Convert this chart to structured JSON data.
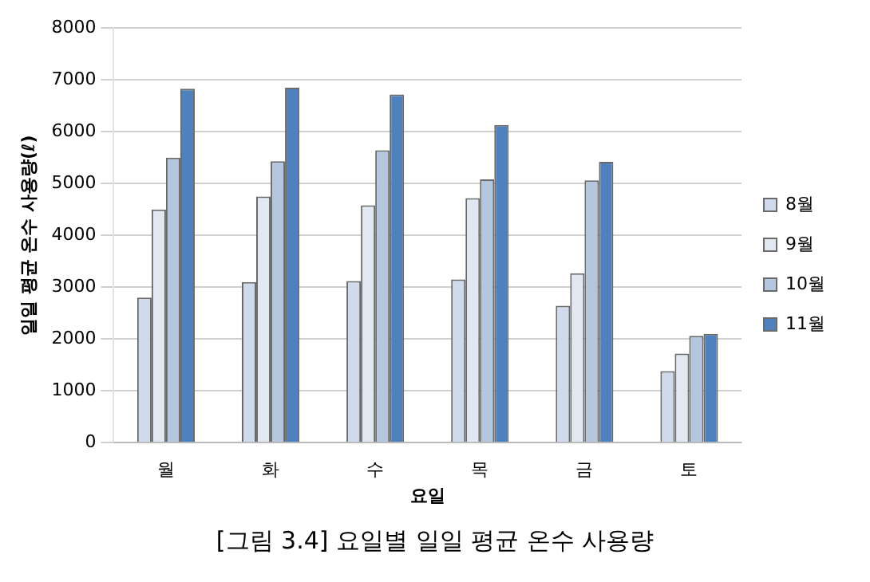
{
  "chart_data": {
    "type": "bar",
    "xlabel": "요일",
    "ylabel": "일일 평균 온수 사용량(ℓ)",
    "annotations": [
      "[그림 3.4] 요일별 일일 평균 온수 사용량"
    ],
    "categories": [
      "월",
      "화",
      "수",
      "목",
      "금",
      "토"
    ],
    "series": [
      {
        "name": "8월",
        "color": "#cfdbec",
        "values": [
          2800,
          3100,
          3120,
          3150,
          2640,
          1380
        ]
      },
      {
        "name": "9월",
        "color": "#e2e8f1",
        "values": [
          4500,
          4750,
          4580,
          4720,
          3270,
          1720
        ]
      },
      {
        "name": "10월",
        "color": "#b5c6df",
        "values": [
          5500,
          5430,
          5640,
          5080,
          5060,
          2060
        ]
      },
      {
        "name": "11월",
        "color": "#4f81bd",
        "values": [
          6830,
          6850,
          6720,
          6130,
          5420,
          2100
        ]
      }
    ],
    "ylim": [
      0,
      8000
    ],
    "yticks": [
      0,
      1000,
      2000,
      3000,
      4000,
      5000,
      6000,
      7000,
      8000
    ],
    "grid": "y",
    "legend": "right"
  }
}
